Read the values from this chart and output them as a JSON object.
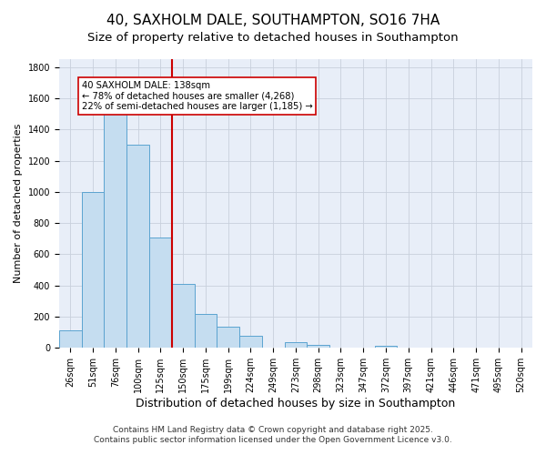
{
  "title": "40, SAXHOLM DALE, SOUTHAMPTON, SO16 7HA",
  "subtitle": "Size of property relative to detached houses in Southampton",
  "xlabel": "Distribution of detached houses by size in Southampton",
  "ylabel": "Number of detached properties",
  "categories": [
    "26sqm",
    "51sqm",
    "76sqm",
    "100sqm",
    "125sqm",
    "150sqm",
    "175sqm",
    "199sqm",
    "224sqm",
    "249sqm",
    "273sqm",
    "298sqm",
    "323sqm",
    "347sqm",
    "372sqm",
    "397sqm",
    "421sqm",
    "446sqm",
    "471sqm",
    "495sqm",
    "520sqm"
  ],
  "values": [
    110,
    1000,
    1500,
    1300,
    710,
    410,
    215,
    135,
    75,
    0,
    35,
    20,
    0,
    0,
    15,
    0,
    0,
    0,
    0,
    0,
    0
  ],
  "bar_color": "#c5ddf0",
  "bar_edge_color": "#5ba3d0",
  "vline_color": "#cc0000",
  "annotation_title": "40 SAXHOLM DALE: 138sqm",
  "annotation_line1": "← 78% of detached houses are smaller (4,268)",
  "annotation_line2": "22% of semi-detached houses are larger (1,185) →",
  "ylim": [
    0,
    1850
  ],
  "yticks": [
    0,
    200,
    400,
    600,
    800,
    1000,
    1200,
    1400,
    1600,
    1800
  ],
  "plot_bg_color": "#e8eef8",
  "fig_bg_color": "#ffffff",
  "grid_color": "#c8d0dc",
  "footer_line1": "Contains HM Land Registry data © Crown copyright and database right 2025.",
  "footer_line2": "Contains public sector information licensed under the Open Government Licence v3.0.",
  "title_fontsize": 11,
  "xlabel_fontsize": 9,
  "ylabel_fontsize": 8,
  "tick_fontsize": 7,
  "footer_fontsize": 6.5
}
